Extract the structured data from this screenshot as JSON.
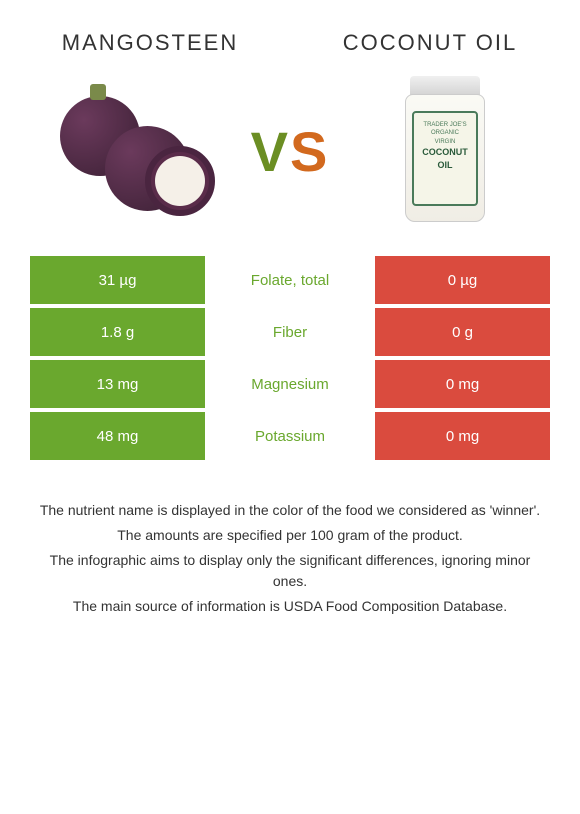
{
  "header": {
    "left_title": "MANGOSTEEN",
    "right_title": "COCONUT OIL"
  },
  "vs_label": {
    "v": "V",
    "s": "S"
  },
  "jar_label": {
    "line1": "TRADER JOE'S",
    "line2": "ORGANIC",
    "line3": "VIRGIN",
    "brand": "COCONUT OIL"
  },
  "colors": {
    "left_fill": "#6aa82e",
    "right_fill": "#da4b3e",
    "mid_text_winner": "#6aa82e",
    "left_alt_bg": "#f5f5f0",
    "right_alt_bg": "#f5f5f0"
  },
  "rows": [
    {
      "label": "Folate, total",
      "left": "31 µg",
      "right": "0 µg",
      "winner": "left"
    },
    {
      "label": "Fiber",
      "left": "1.8 g",
      "right": "0 g",
      "winner": "left"
    },
    {
      "label": "Magnesium",
      "left": "13 mg",
      "right": "0 mg",
      "winner": "left"
    },
    {
      "label": "Potassium",
      "left": "48 mg",
      "right": "0 mg",
      "winner": "left"
    }
  ],
  "notes": [
    "The nutrient name is displayed in the color of the food we considered as 'winner'.",
    "The amounts are specified per 100 gram of the product.",
    "The infographic aims to display only the significant differences, ignoring minor ones.",
    "The main source of information is USDA Food Composition Database."
  ]
}
